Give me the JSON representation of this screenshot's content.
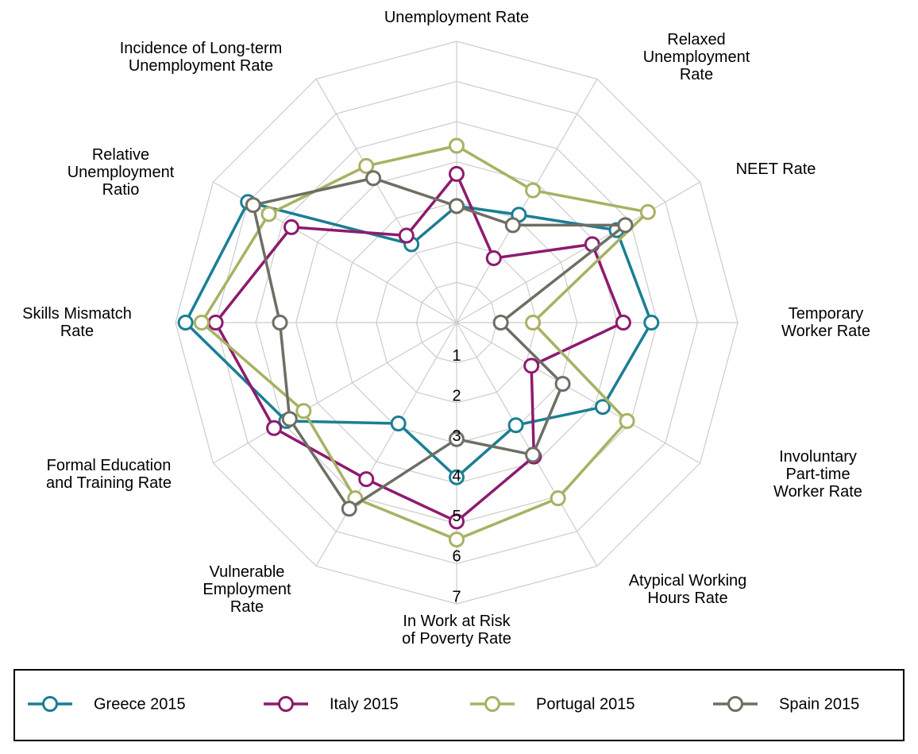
{
  "chart_data": {
    "type": "radar",
    "categories": [
      "Unemployment Rate",
      "Relaxed\nUnemployment\nRate",
      "NEET Rate",
      "Temporary\nWorker Rate",
      "Involuntary Part-time\nWorker Rate",
      "Atypical Working\nHours Rate",
      "In Work at Risk\nof Poverty Rate",
      "Vulnerable\nEmployment\nRate",
      "Formal Education\nand Training Rate",
      "Skills Mismatch\nRate",
      "Relative\nUnemployment\nRatio",
      "Incidence of Long-term\nUnemployment Rate"
    ],
    "series": [
      {
        "name": "Greece 2015",
        "color": "#1a7f94",
        "values": [
          2.9,
          3.1,
          4.6,
          4.85,
          4.2,
          2.95,
          3.85,
          2.9,
          4.9,
          6.75,
          6.0,
          2.25
        ]
      },
      {
        "name": "Italy 2015",
        "color": "#8e1a6f",
        "values": [
          3.7,
          1.85,
          3.9,
          4.15,
          2.15,
          3.85,
          4.95,
          4.5,
          5.25,
          6.0,
          4.75,
          2.5
        ]
      },
      {
        "name": "Portugal 2015",
        "color": "#a9b163",
        "values": [
          4.4,
          3.8,
          5.5,
          1.9,
          4.9,
          5.05,
          5.4,
          5.05,
          4.4,
          6.35,
          5.4,
          4.5
        ]
      },
      {
        "name": "Spain 2015",
        "color": "#6e6e64",
        "values": [
          2.9,
          2.8,
          4.85,
          1.1,
          3.05,
          3.8,
          2.9,
          5.35,
          4.8,
          4.4,
          5.85,
          4.15
        ]
      }
    ],
    "rlim": [
      0,
      7
    ],
    "rticks": [
      1,
      2,
      3,
      4,
      5,
      6,
      7
    ],
    "grid": true,
    "legend": "bottom"
  }
}
